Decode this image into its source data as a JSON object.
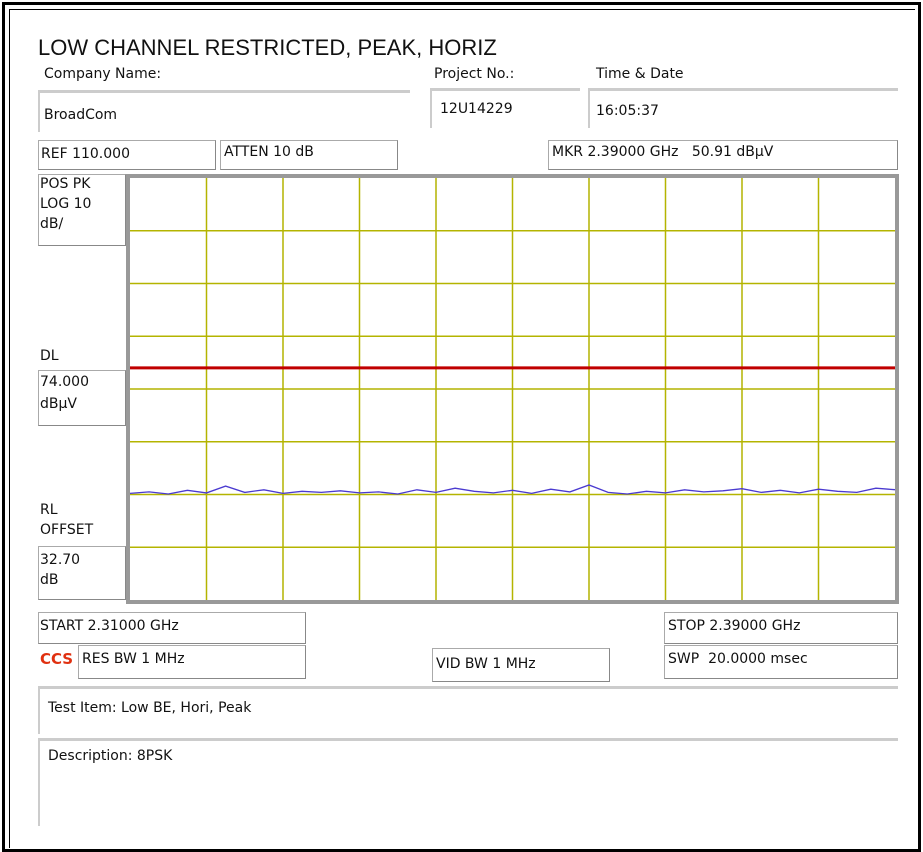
{
  "header": {
    "title": "LOW CHANNEL RESTRICTED, PEAK, HORIZ",
    "company_label": "Company Name:",
    "company": "BroadCom",
    "project_label": "Project No.:",
    "project": "12U14229",
    "time_label": "Time & Date",
    "time": "16:05:37"
  },
  "settings": {
    "ref": "REF 110.000",
    "atten": "ATTEN 10 dB",
    "marker": "MKR 2.39000 GHz   50.91 dBµV",
    "detector": [
      "POS PK",
      "LOG 10",
      "dB/"
    ],
    "dl_label": "DL",
    "dl_unit": "dBµV",
    "rl_label": [
      "RL",
      "OFFSET"
    ],
    "rl_value": [
      "32.70",
      "dB"
    ],
    "start": "START 2.31000 GHz",
    "stop": "STOP 2.39000 GHz",
    "logo": "CCS",
    "res_bw": "RES BW 1 MHz",
    "vid_bw": "VID BW 1 MHz",
    "sweep": "SWP  20.0000 msec"
  },
  "chart_data": {
    "type": "line",
    "xlim": [
      2.31,
      2.39
    ],
    "ylim": [
      30,
      110
    ],
    "display_line": {
      "value": 74,
      "label": "74.000",
      "color": "#c00000"
    },
    "x": [
      2.31,
      2.312,
      2.314,
      2.316,
      2.318,
      2.32,
      2.322,
      2.324,
      2.326,
      2.328,
      2.33,
      2.332,
      2.334,
      2.336,
      2.338,
      2.34,
      2.342,
      2.344,
      2.346,
      2.348,
      2.35,
      2.352,
      2.354,
      2.356,
      2.358,
      2.36,
      2.362,
      2.364,
      2.366,
      2.368,
      2.37,
      2.372,
      2.374,
      2.376,
      2.378,
      2.38,
      2.382,
      2.384,
      2.386,
      2.388,
      2.39
    ],
    "series": [
      {
        "color": "#4a3ad0",
        "values": [
          50.2,
          50.5,
          50.1,
          50.8,
          50.3,
          51.6,
          50.4,
          50.9,
          50.2,
          50.6,
          50.4,
          50.7,
          50.3,
          50.5,
          50.1,
          50.9,
          50.4,
          51.2,
          50.6,
          50.3,
          50.8,
          50.2,
          51.0,
          50.5,
          51.8,
          50.4,
          50.1,
          50.6,
          50.3,
          50.9,
          50.5,
          50.7,
          51.1,
          50.4,
          50.8,
          50.3,
          51.0,
          50.6,
          50.4,
          51.2,
          50.91
        ]
      }
    ]
  },
  "footer": {
    "test_item": "Test Item: Low BE, Hori, Peak",
    "description": "Description: 8PSK"
  }
}
